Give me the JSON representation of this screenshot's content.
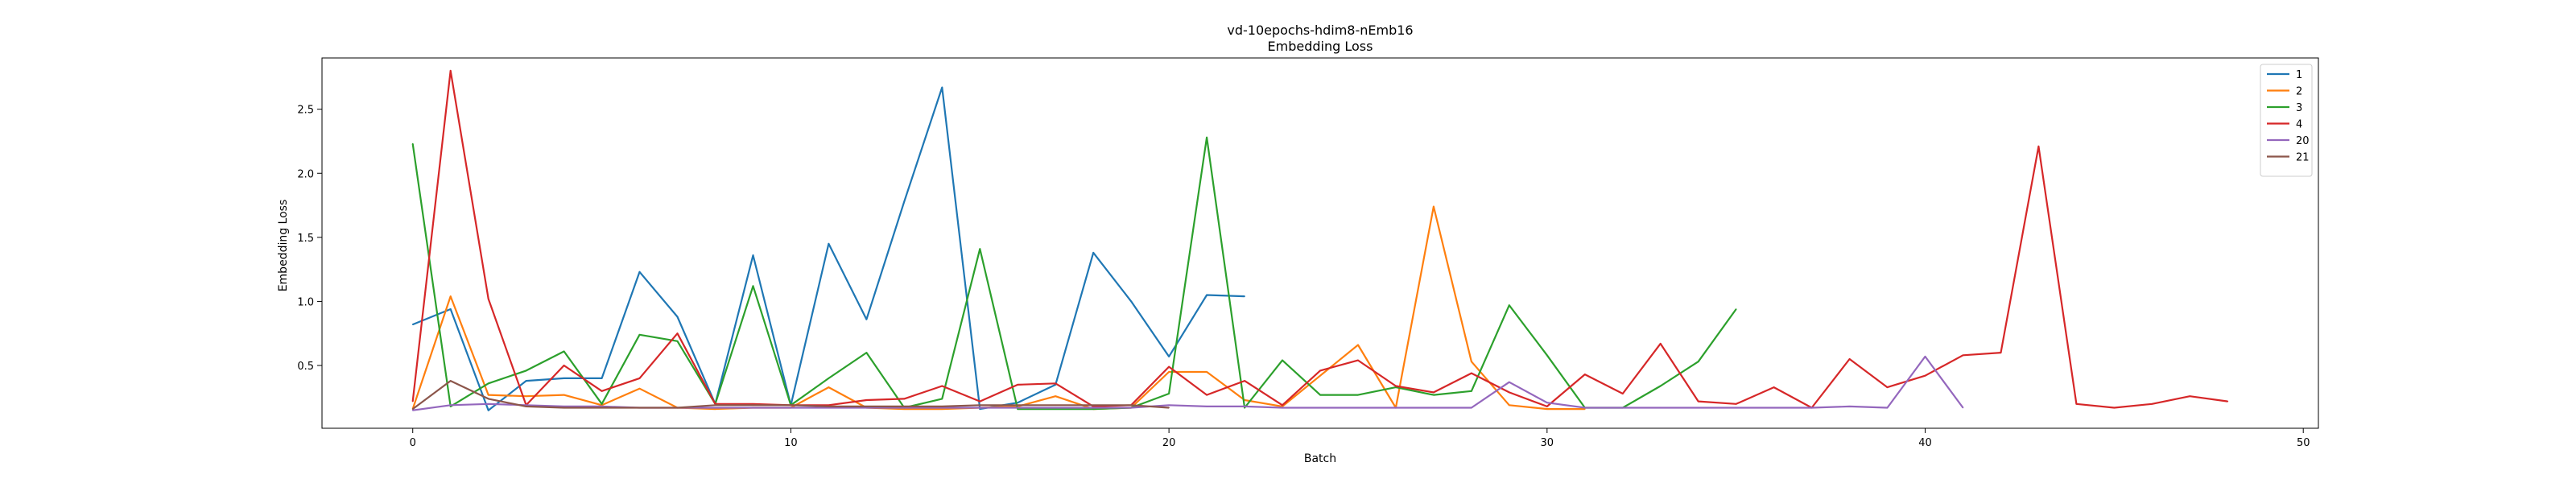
{
  "chart_data": {
    "type": "line",
    "title": "vd-10epochs-hdim8-nEmb16",
    "subtitle": "Embedding Loss",
    "xlabel": "Batch",
    "ylabel": "Embedding Loss",
    "xlim": [
      -2.4,
      50.4
    ],
    "ylim": [
      0.01,
      2.9
    ],
    "xticks": [
      0,
      10,
      20,
      30,
      40,
      50
    ],
    "yticks": [
      0.5,
      1.0,
      1.5,
      2.0,
      2.5
    ],
    "xtick_labels": [
      "0",
      "10",
      "20",
      "30",
      "40",
      "50"
    ],
    "ytick_labels": [
      "0.5",
      "1.0",
      "1.5",
      "2.0",
      "2.5"
    ],
    "grid": false,
    "legend_position": "top-right",
    "series": [
      {
        "name": "1",
        "color": "#1f77b4",
        "x": [
          0,
          1,
          2,
          3,
          4,
          5,
          6,
          7,
          8,
          9,
          10,
          11,
          12,
          13,
          14,
          15,
          16,
          17,
          18,
          19,
          20,
          21,
          22
        ],
        "values": [
          0.82,
          0.94,
          0.15,
          0.38,
          0.4,
          0.4,
          1.23,
          0.88,
          0.2,
          1.36,
          0.19,
          1.45,
          0.86,
          1.78,
          2.67,
          0.16,
          0.21,
          0.35,
          1.38,
          1.0,
          0.57,
          1.05,
          1.04
        ]
      },
      {
        "name": "2",
        "color": "#ff7f0e",
        "x": [
          0,
          1,
          2,
          3,
          4,
          5,
          6,
          7,
          8,
          9,
          10,
          11,
          12,
          13,
          14,
          15,
          16,
          17,
          18,
          19,
          20,
          21,
          22,
          23,
          24,
          25,
          26,
          27,
          28,
          29,
          30,
          31
        ],
        "values": [
          0.16,
          1.04,
          0.27,
          0.26,
          0.27,
          0.19,
          0.32,
          0.17,
          0.16,
          0.17,
          0.17,
          0.33,
          0.17,
          0.16,
          0.16,
          0.17,
          0.18,
          0.26,
          0.16,
          0.17,
          0.45,
          0.45,
          0.23,
          0.18,
          0.42,
          0.66,
          0.17,
          1.74,
          0.53,
          0.19,
          0.16,
          0.16
        ]
      },
      {
        "name": "3",
        "color": "#2ca02c",
        "x": [
          0,
          1,
          2,
          3,
          4,
          5,
          6,
          7,
          8,
          9,
          10,
          11,
          12,
          13,
          14,
          15,
          16,
          17,
          18,
          19,
          20,
          21,
          22,
          23,
          24,
          25,
          26,
          27,
          28,
          29,
          30,
          31,
          32,
          33,
          34,
          35
        ],
        "values": [
          2.23,
          0.18,
          0.36,
          0.46,
          0.61,
          0.2,
          0.74,
          0.69,
          0.2,
          1.12,
          0.19,
          0.4,
          0.6,
          0.17,
          0.24,
          1.41,
          0.16,
          0.16,
          0.16,
          0.17,
          0.28,
          2.28,
          0.17,
          0.54,
          0.27,
          0.27,
          0.33,
          0.27,
          0.3,
          0.97,
          0.58,
          0.17,
          0.17,
          0.34,
          0.53,
          0.94
        ]
      },
      {
        "name": "4",
        "color": "#d62728",
        "x": [
          0,
          1,
          2,
          3,
          4,
          5,
          6,
          7,
          8,
          9,
          10,
          11,
          12,
          13,
          14,
          15,
          16,
          17,
          18,
          19,
          20,
          21,
          22,
          23,
          24,
          25,
          26,
          27,
          28,
          29,
          30,
          31,
          32,
          33,
          34,
          35,
          36,
          37,
          38,
          39,
          40,
          41,
          42,
          43,
          44,
          45,
          46,
          47,
          48
        ],
        "values": [
          0.22,
          2.8,
          1.02,
          0.19,
          0.5,
          0.3,
          0.4,
          0.75,
          0.2,
          0.2,
          0.19,
          0.19,
          0.23,
          0.24,
          0.34,
          0.22,
          0.35,
          0.36,
          0.18,
          0.19,
          0.49,
          0.27,
          0.38,
          0.19,
          0.46,
          0.54,
          0.34,
          0.29,
          0.44,
          0.29,
          0.18,
          0.43,
          0.28,
          0.67,
          0.22,
          0.2,
          0.33,
          0.17,
          0.55,
          0.33,
          0.42,
          0.58,
          0.6,
          2.21,
          0.2,
          0.17,
          0.2,
          0.26,
          0.22
        ]
      },
      {
        "name": "20",
        "color": "#9467bd",
        "x": [
          0,
          1,
          2,
          3,
          4,
          5,
          6,
          7,
          8,
          9,
          10,
          11,
          12,
          13,
          14,
          15,
          16,
          17,
          18,
          19,
          20,
          21,
          22,
          23,
          24,
          25,
          26,
          27,
          28,
          29,
          30,
          31,
          32,
          33,
          34,
          35,
          36,
          37,
          38,
          39,
          40,
          41
        ],
        "values": [
          0.15,
          0.19,
          0.2,
          0.19,
          0.18,
          0.18,
          0.17,
          0.17,
          0.17,
          0.17,
          0.17,
          0.17,
          0.17,
          0.17,
          0.17,
          0.17,
          0.17,
          0.17,
          0.17,
          0.17,
          0.19,
          0.18,
          0.18,
          0.17,
          0.17,
          0.17,
          0.17,
          0.17,
          0.17,
          0.37,
          0.21,
          0.17,
          0.17,
          0.17,
          0.17,
          0.17,
          0.17,
          0.17,
          0.18,
          0.17,
          0.57,
          0.17
        ]
      },
      {
        "name": "21",
        "color": "#8c564b",
        "x": [
          0,
          1,
          2,
          3,
          4,
          5,
          6,
          7,
          8,
          9,
          10,
          11,
          12,
          13,
          14,
          15,
          16,
          17,
          18,
          19,
          20
        ],
        "values": [
          0.16,
          0.38,
          0.24,
          0.18,
          0.17,
          0.17,
          0.17,
          0.17,
          0.19,
          0.19,
          0.19,
          0.18,
          0.18,
          0.18,
          0.18,
          0.19,
          0.19,
          0.19,
          0.19,
          0.19,
          0.17
        ]
      }
    ]
  }
}
